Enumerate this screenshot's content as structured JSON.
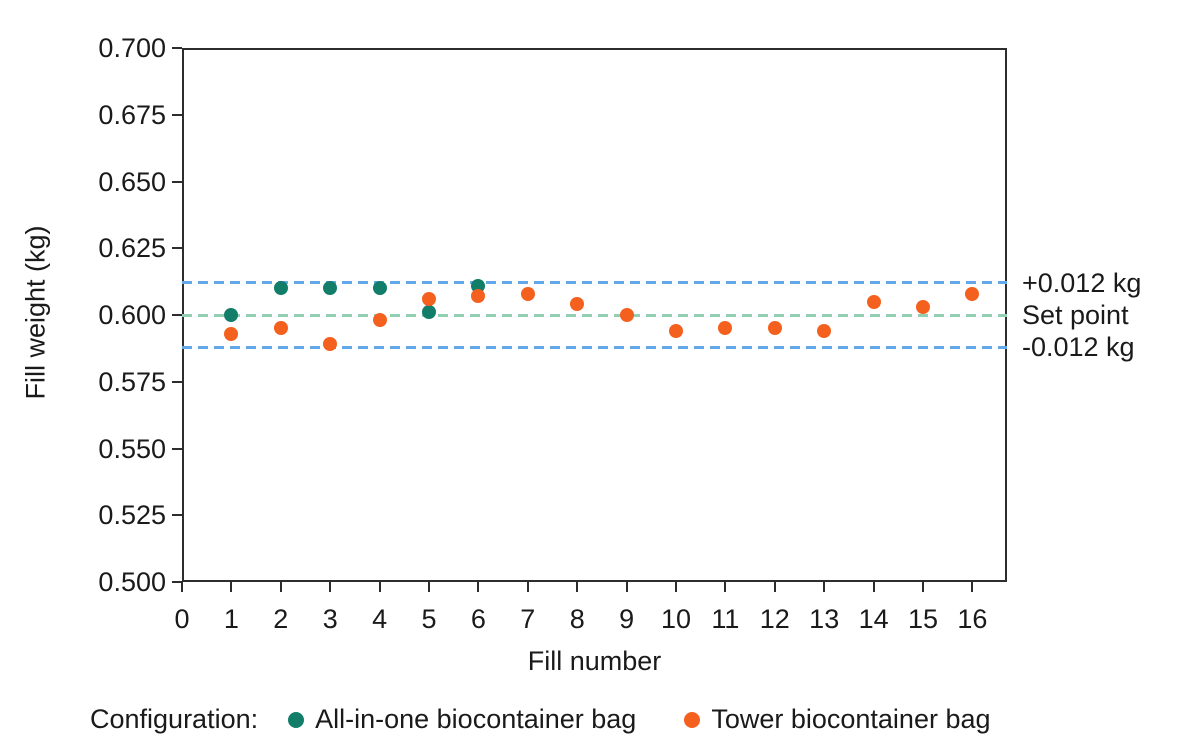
{
  "chart_data": {
    "type": "scatter",
    "title": "",
    "xlabel": "Fill number",
    "ylabel": "Fill weight (kg)",
    "xlim": [
      0,
      16.7
    ],
    "ylim": [
      0.5,
      0.7
    ],
    "grid": false,
    "x_ticks": [
      "0",
      "1",
      "2",
      "3",
      "4",
      "5",
      "6",
      "7",
      "8",
      "9",
      "10",
      "11",
      "12",
      "13",
      "14",
      "15",
      "16"
    ],
    "y_ticks": [
      "0.500",
      "0.525",
      "0.550",
      "0.575",
      "0.600",
      "0.625",
      "0.650",
      "0.675",
      "0.700"
    ],
    "reference_lines": [
      {
        "label": "+0.012 kg",
        "value": 0.612,
        "color": "#63a8ea"
      },
      {
        "label": "Set point",
        "value": 0.6,
        "color": "#92d0b4"
      },
      {
        "label": "-0.012 kg",
        "value": 0.588,
        "color": "#63a8ea"
      }
    ],
    "legend_title": "Configuration:",
    "legend_position": "bottom-left",
    "series": [
      {
        "name": "All-in-one biocontainer bag",
        "color": "#127d69",
        "x": [
          1,
          2,
          3,
          4,
          5,
          6
        ],
        "y": [
          0.6,
          0.61,
          0.61,
          0.61,
          0.601,
          0.611
        ]
      },
      {
        "name": "Tower biocontainer bag",
        "color": "#f4601d",
        "x": [
          1,
          2,
          3,
          4,
          5,
          6,
          7,
          8,
          9,
          10,
          11,
          12,
          13,
          14,
          15,
          16
        ],
        "y": [
          0.593,
          0.595,
          0.589,
          0.598,
          0.606,
          0.607,
          0.608,
          0.604,
          0.6,
          0.594,
          0.595,
          0.595,
          0.594,
          0.605,
          0.603,
          0.608
        ]
      }
    ],
    "colors": {
      "axis": "#2d2d2d",
      "text": "#1a1a1a",
      "upper_limit_line": "#63a8ea",
      "set_point_line": "#92d0b4",
      "lower_limit_line": "#63a8ea",
      "series_all_in_one": "#127d69",
      "series_tower": "#f4601d"
    }
  }
}
